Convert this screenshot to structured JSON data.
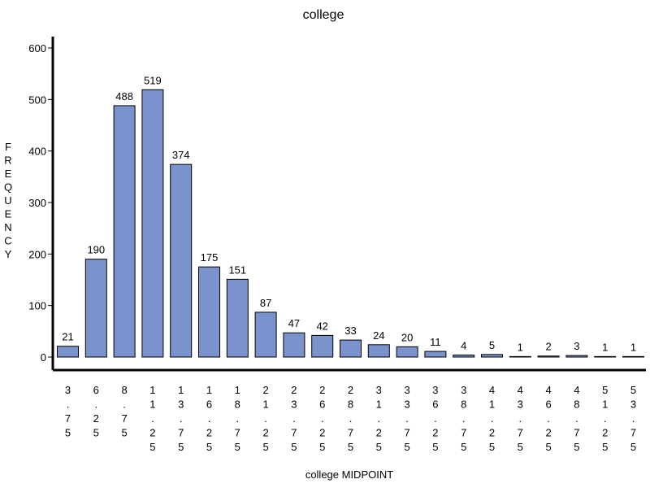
{
  "chart_data": {
    "type": "bar",
    "title": "college",
    "xlabel": "college MIDPOINT",
    "ylabel": "FREQUENCY",
    "categories": [
      "3.75",
      "6.25",
      "8.75",
      "11.25",
      "13.75",
      "16.25",
      "18.75",
      "21.25",
      "23.75",
      "26.25",
      "28.75",
      "31.25",
      "33.75",
      "36.25",
      "38.75",
      "41.25",
      "43.75",
      "46.25",
      "48.75",
      "51.25",
      "53.75"
    ],
    "values": [
      21,
      190,
      488,
      519,
      374,
      175,
      151,
      87,
      47,
      42,
      33,
      24,
      20,
      11,
      4,
      5,
      1,
      2,
      3,
      1,
      1
    ],
    "yticks": [
      0,
      100,
      200,
      300,
      400,
      500,
      600
    ],
    "ylim": [
      0,
      600
    ],
    "grid": false,
    "bar_color": "#7b93cd",
    "data_labels": true
  }
}
